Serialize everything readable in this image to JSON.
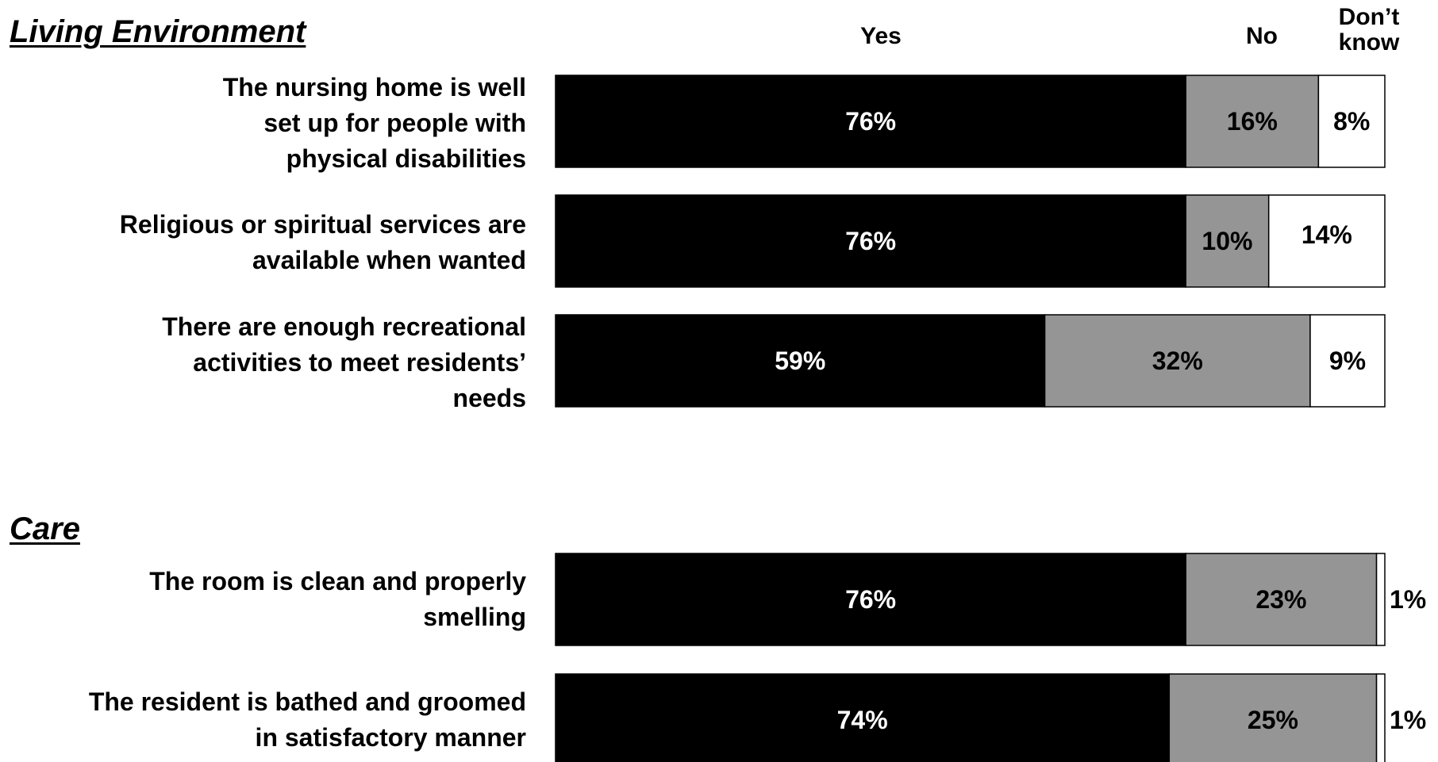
{
  "colors": {
    "yes": "#000000",
    "no": "#959595",
    "dont_know": "#ffffff"
  },
  "headers": {
    "yes": "Yes",
    "no": "No",
    "dont_know_line1": "Don’t",
    "dont_know_line2": "know"
  },
  "chart_data": {
    "type": "bar",
    "orientation": "horizontal-stacked-100",
    "series": [
      {
        "name": "Yes",
        "values": [
          76,
          76,
          59,
          76,
          74
        ]
      },
      {
        "name": "No",
        "values": [
          16,
          10,
          32,
          23,
          25
        ]
      },
      {
        "name": "Don’t know",
        "values": [
          8,
          14,
          9,
          1,
          1
        ]
      }
    ],
    "sections": [
      {
        "title": "Living Environment",
        "rows": [
          {
            "label_lines": [
              "The nursing home is well",
              "set up for people with",
              "physical disabilities"
            ],
            "yes": 76,
            "no": 16,
            "dk": 8,
            "yes_text": "76%",
            "no_text": "16%",
            "dk_text": "8%"
          },
          {
            "label_lines": [
              "Religious or spiritual services are",
              "available when wanted"
            ],
            "yes": 76,
            "no": 10,
            "dk": 14,
            "yes_text": "76%",
            "no_text": "10%",
            "dk_text": "14%"
          },
          {
            "label_lines": [
              "There are enough recreational",
              "activities to meet residents’",
              "needs"
            ],
            "yes": 59,
            "no": 32,
            "dk": 9,
            "yes_text": "59%",
            "no_text": "32%",
            "dk_text": "9%"
          }
        ]
      },
      {
        "title": "Care",
        "rows": [
          {
            "label_lines": [
              "The room is clean and properly",
              "smelling"
            ],
            "yes": 76,
            "no": 23,
            "dk": 1,
            "yes_text": "76%",
            "no_text": "23%",
            "dk_text": "1%"
          },
          {
            "label_lines": [
              "The resident is bathed and groomed",
              "in satisfactory manner"
            ],
            "yes": 74,
            "no": 25,
            "dk": 1,
            "yes_text": "74%",
            "no_text": "25%",
            "dk_text": "1%"
          }
        ]
      }
    ]
  }
}
